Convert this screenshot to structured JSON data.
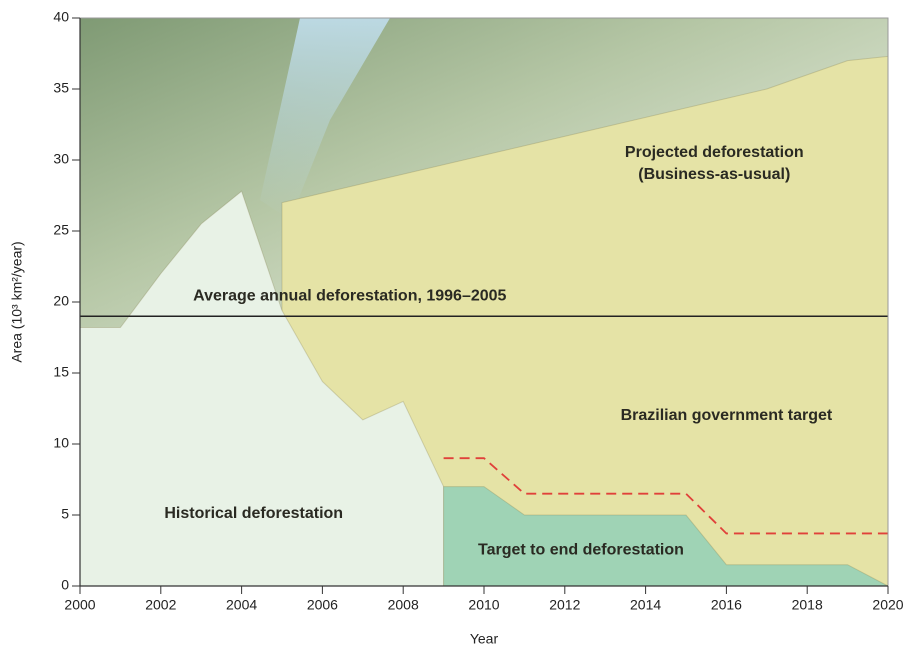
{
  "chart_data": {
    "type": "area",
    "xlabel": "Year",
    "ylabel": "Area (10³ km²/year)",
    "xlim": [
      2000,
      2020
    ],
    "ylim": [
      0,
      40
    ],
    "xticks": [
      2000,
      2002,
      2004,
      2006,
      2008,
      2010,
      2012,
      2014,
      2016,
      2018,
      2020
    ],
    "yticks": [
      0,
      5,
      10,
      15,
      20,
      25,
      30,
      35,
      40
    ],
    "series": [
      {
        "name": [
          "Projected deforestation",
          "(Business-as-usual)"
        ],
        "color": "#e5e3a6",
        "x": [
          2005,
          2005,
          2017,
          2019,
          2020
        ],
        "values": [
          19,
          27,
          35,
          37,
          37.3
        ]
      },
      {
        "name": [
          "Historical deforestation"
        ],
        "color": "#e8f2e6",
        "x": [
          2000,
          2001,
          2002,
          2003,
          2004,
          2005,
          2006,
          2007,
          2008,
          2009
        ],
        "values": [
          18.2,
          18.2,
          22,
          25.5,
          27.8,
          19.4,
          14.4,
          11.7,
          13,
          7
        ]
      },
      {
        "name": [
          "Target to end deforestation"
        ],
        "color": "#9fd3b5",
        "x": [
          2009,
          2010,
          2011,
          2015,
          2016,
          2019,
          2020
        ],
        "values": [
          7,
          7,
          5,
          5,
          1.5,
          1.5,
          0
        ]
      },
      {
        "name": [
          "Brazilian government target"
        ],
        "color": "#e0413a",
        "dash": true,
        "x": [
          2009,
          2010,
          2011,
          2015,
          2016,
          2020
        ],
        "values": [
          9,
          9,
          6.5,
          6.5,
          3.7,
          3.7
        ]
      }
    ],
    "hline": {
      "value": 19,
      "label": "Average annual deforestation, 1996–2005",
      "color": "#222222"
    }
  }
}
